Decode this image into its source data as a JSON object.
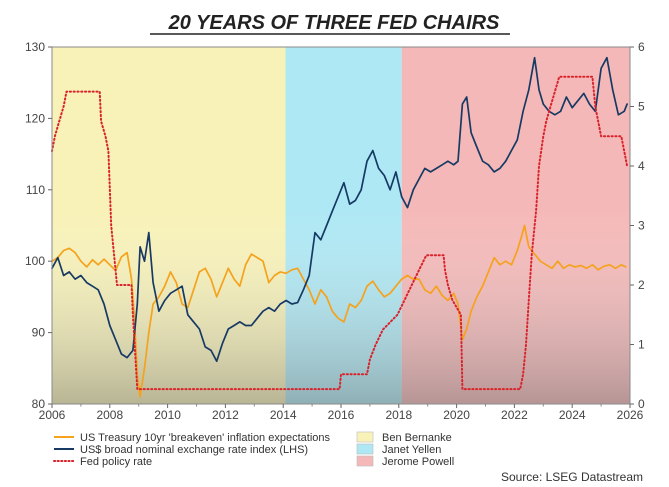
{
  "chart_data": {
    "type": "line",
    "title": "20 YEARS OF THREE FED CHAIRS",
    "source": "Source: LSEG Datastream",
    "x_ticks": [
      "2006",
      "2008",
      "2010",
      "2012",
      "2014",
      "2016",
      "2018",
      "2020",
      "2022",
      "2024",
      "2026"
    ],
    "xlim": [
      2006,
      2026
    ],
    "y_left": {
      "lim": [
        80,
        130
      ],
      "ticks": [
        "80",
        "90",
        "100",
        "110",
        "120",
        "130"
      ]
    },
    "y_right": {
      "lim": [
        0,
        6
      ],
      "ticks": [
        "0",
        "1",
        "2",
        "3",
        "4",
        "5",
        "6"
      ]
    },
    "grid": false,
    "legend_position": "bottom",
    "regimes": [
      {
        "name": "Ben Bernanke",
        "start": 2006.0,
        "end": 2014.08,
        "color": "#f8f2b8"
      },
      {
        "name": "Janet Yellen",
        "start": 2014.08,
        "end": 2018.1,
        "color": "#aee8f4"
      },
      {
        "name": "Jerome Powell",
        "start": 2018.1,
        "end": 2026.0,
        "color": "#f5b8b8"
      }
    ],
    "series": [
      {
        "name": "US Treasury 10yr 'breakeven' inflation expectations",
        "axis": "left",
        "color": "#f5a21c",
        "style": "solid",
        "points": [
          [
            2006.0,
            100
          ],
          [
            2006.2,
            100.5
          ],
          [
            2006.4,
            101.5
          ],
          [
            2006.6,
            101.8
          ],
          [
            2006.8,
            101.2
          ],
          [
            2007.0,
            100
          ],
          [
            2007.2,
            99.2
          ],
          [
            2007.4,
            100.2
          ],
          [
            2007.6,
            99.5
          ],
          [
            2007.8,
            100.3
          ],
          [
            2008.0,
            99.5
          ],
          [
            2008.2,
            98.7
          ],
          [
            2008.4,
            100.6
          ],
          [
            2008.6,
            101.2
          ],
          [
            2008.75,
            97.5
          ],
          [
            2008.85,
            92
          ],
          [
            2008.95,
            84
          ],
          [
            2009.05,
            81
          ],
          [
            2009.2,
            85
          ],
          [
            2009.35,
            90
          ],
          [
            2009.5,
            94
          ],
          [
            2009.7,
            95
          ],
          [
            2009.9,
            96.5
          ],
          [
            2010.1,
            98.5
          ],
          [
            2010.3,
            97
          ],
          [
            2010.5,
            94
          ],
          [
            2010.7,
            93.5
          ],
          [
            2010.9,
            96
          ],
          [
            2011.1,
            98.5
          ],
          [
            2011.3,
            99
          ],
          [
            2011.5,
            97.5
          ],
          [
            2011.7,
            95
          ],
          [
            2011.9,
            97
          ],
          [
            2012.1,
            99
          ],
          [
            2012.3,
            97.5
          ],
          [
            2012.5,
            96.5
          ],
          [
            2012.7,
            99.5
          ],
          [
            2012.9,
            101
          ],
          [
            2013.1,
            100.5
          ],
          [
            2013.3,
            100
          ],
          [
            2013.5,
            97
          ],
          [
            2013.7,
            98
          ],
          [
            2013.9,
            98.5
          ],
          [
            2014.1,
            98.3
          ],
          [
            2014.3,
            98.8
          ],
          [
            2014.5,
            99
          ],
          [
            2014.7,
            97.5
          ],
          [
            2014.9,
            96
          ],
          [
            2015.1,
            94
          ],
          [
            2015.3,
            96
          ],
          [
            2015.5,
            95
          ],
          [
            2015.7,
            93
          ],
          [
            2015.9,
            92
          ],
          [
            2016.1,
            91.5
          ],
          [
            2016.3,
            94
          ],
          [
            2016.5,
            93.5
          ],
          [
            2016.7,
            94.5
          ],
          [
            2016.9,
            96.5
          ],
          [
            2017.1,
            97.2
          ],
          [
            2017.3,
            96
          ],
          [
            2017.5,
            95
          ],
          [
            2017.7,
            95.5
          ],
          [
            2017.9,
            96.5
          ],
          [
            2018.1,
            97.5
          ],
          [
            2018.3,
            98
          ],
          [
            2018.5,
            97.5
          ],
          [
            2018.7,
            97.5
          ],
          [
            2018.9,
            96
          ],
          [
            2019.1,
            95.5
          ],
          [
            2019.3,
            96.5
          ],
          [
            2019.5,
            95.2
          ],
          [
            2019.7,
            94.5
          ],
          [
            2019.9,
            95.5
          ],
          [
            2020.05,
            94
          ],
          [
            2020.2,
            89
          ],
          [
            2020.35,
            90.5
          ],
          [
            2020.5,
            93
          ],
          [
            2020.7,
            95
          ],
          [
            2020.9,
            96.5
          ],
          [
            2021.1,
            98.5
          ],
          [
            2021.3,
            100.5
          ],
          [
            2021.5,
            99.5
          ],
          [
            2021.7,
            100
          ],
          [
            2021.9,
            99.5
          ],
          [
            2022.1,
            101.5
          ],
          [
            2022.25,
            103.5
          ],
          [
            2022.35,
            105
          ],
          [
            2022.5,
            102
          ],
          [
            2022.7,
            101
          ],
          [
            2022.9,
            100
          ],
          [
            2023.1,
            99.5
          ],
          [
            2023.3,
            99
          ],
          [
            2023.5,
            100
          ],
          [
            2023.7,
            99
          ],
          [
            2023.9,
            99.5
          ],
          [
            2024.1,
            99.2
          ],
          [
            2024.3,
            99.4
          ],
          [
            2024.5,
            99
          ],
          [
            2024.7,
            99.5
          ],
          [
            2024.9,
            98.8
          ],
          [
            2025.1,
            99.3
          ],
          [
            2025.3,
            99.5
          ],
          [
            2025.5,
            99
          ],
          [
            2025.7,
            99.5
          ],
          [
            2025.85,
            99.2
          ]
        ]
      },
      {
        "name": "US$ broad nominal exchange rate index (LHS)",
        "axis": "left",
        "color": "#173a64",
        "style": "solid",
        "points": [
          [
            2006.0,
            99
          ],
          [
            2006.2,
            100.5
          ],
          [
            2006.4,
            98
          ],
          [
            2006.6,
            98.5
          ],
          [
            2006.8,
            97.5
          ],
          [
            2007.0,
            98
          ],
          [
            2007.2,
            97
          ],
          [
            2007.4,
            96.5
          ],
          [
            2007.6,
            96
          ],
          [
            2007.8,
            94
          ],
          [
            2008.0,
            91
          ],
          [
            2008.2,
            89
          ],
          [
            2008.4,
            87
          ],
          [
            2008.6,
            86.5
          ],
          [
            2008.8,
            87.5
          ],
          [
            2008.95,
            94
          ],
          [
            2009.05,
            102
          ],
          [
            2009.2,
            100
          ],
          [
            2009.35,
            104
          ],
          [
            2009.5,
            97
          ],
          [
            2009.7,
            93
          ],
          [
            2009.9,
            94.5
          ],
          [
            2010.1,
            95.5
          ],
          [
            2010.3,
            96
          ],
          [
            2010.5,
            96.5
          ],
          [
            2010.7,
            92.5
          ],
          [
            2010.9,
            91.5
          ],
          [
            2011.1,
            90.5
          ],
          [
            2011.3,
            88
          ],
          [
            2011.5,
            87.5
          ],
          [
            2011.7,
            86
          ],
          [
            2011.9,
            88.5
          ],
          [
            2012.1,
            90.5
          ],
          [
            2012.3,
            91
          ],
          [
            2012.5,
            91.5
          ],
          [
            2012.7,
            91
          ],
          [
            2012.9,
            91
          ],
          [
            2013.1,
            92
          ],
          [
            2013.3,
            93
          ],
          [
            2013.5,
            93.5
          ],
          [
            2013.7,
            93
          ],
          [
            2013.9,
            94
          ],
          [
            2014.1,
            94.5
          ],
          [
            2014.3,
            94
          ],
          [
            2014.5,
            94.2
          ],
          [
            2014.7,
            96
          ],
          [
            2014.9,
            98
          ],
          [
            2015.1,
            104
          ],
          [
            2015.3,
            103
          ],
          [
            2015.5,
            105
          ],
          [
            2015.7,
            107
          ],
          [
            2015.9,
            109
          ],
          [
            2016.1,
            111
          ],
          [
            2016.3,
            108
          ],
          [
            2016.5,
            108.5
          ],
          [
            2016.7,
            110
          ],
          [
            2016.9,
            114
          ],
          [
            2017.1,
            115.5
          ],
          [
            2017.3,
            113
          ],
          [
            2017.5,
            112
          ],
          [
            2017.7,
            110
          ],
          [
            2017.9,
            112.5
          ],
          [
            2018.1,
            109
          ],
          [
            2018.3,
            107.5
          ],
          [
            2018.5,
            110
          ],
          [
            2018.7,
            111.5
          ],
          [
            2018.9,
            113
          ],
          [
            2019.1,
            112.5
          ],
          [
            2019.3,
            113
          ],
          [
            2019.5,
            113.5
          ],
          [
            2019.7,
            114
          ],
          [
            2019.9,
            113.5
          ],
          [
            2020.05,
            114
          ],
          [
            2020.2,
            122
          ],
          [
            2020.35,
            123
          ],
          [
            2020.5,
            118
          ],
          [
            2020.7,
            116
          ],
          [
            2020.9,
            114
          ],
          [
            2021.1,
            113.5
          ],
          [
            2021.3,
            112.5
          ],
          [
            2021.5,
            113
          ],
          [
            2021.7,
            114
          ],
          [
            2021.9,
            115.5
          ],
          [
            2022.1,
            117
          ],
          [
            2022.3,
            121
          ],
          [
            2022.5,
            124
          ],
          [
            2022.7,
            128.5
          ],
          [
            2022.85,
            124
          ],
          [
            2023.0,
            122
          ],
          [
            2023.2,
            121
          ],
          [
            2023.4,
            120.5
          ],
          [
            2023.6,
            121
          ],
          [
            2023.8,
            123
          ],
          [
            2024.0,
            121.5
          ],
          [
            2024.2,
            122.5
          ],
          [
            2024.4,
            123.5
          ],
          [
            2024.6,
            122
          ],
          [
            2024.8,
            121
          ],
          [
            2025.0,
            127
          ],
          [
            2025.2,
            128.5
          ],
          [
            2025.4,
            124
          ],
          [
            2025.6,
            120.5
          ],
          [
            2025.8,
            121
          ],
          [
            2025.9,
            122
          ]
        ]
      },
      {
        "name": "Fed policy rate",
        "axis": "right",
        "color": "#d9222a",
        "style": "dotted",
        "points": [
          [
            2006.0,
            4.25
          ],
          [
            2006.1,
            4.5
          ],
          [
            2006.25,
            4.75
          ],
          [
            2006.4,
            5.0
          ],
          [
            2006.5,
            5.25
          ],
          [
            2007.65,
            5.25
          ],
          [
            2007.7,
            4.75
          ],
          [
            2007.85,
            4.5
          ],
          [
            2007.95,
            4.25
          ],
          [
            2008.05,
            3.0
          ],
          [
            2008.25,
            2.0
          ],
          [
            2008.75,
            2.0
          ],
          [
            2008.8,
            1.5
          ],
          [
            2008.95,
            0.25
          ],
          [
            2015.95,
            0.25
          ],
          [
            2016.0,
            0.5
          ],
          [
            2016.9,
            0.5
          ],
          [
            2017.0,
            0.75
          ],
          [
            2017.2,
            1.0
          ],
          [
            2017.45,
            1.25
          ],
          [
            2017.95,
            1.5
          ],
          [
            2018.2,
            1.75
          ],
          [
            2018.45,
            2.0
          ],
          [
            2018.7,
            2.25
          ],
          [
            2018.95,
            2.5
          ],
          [
            2019.55,
            2.5
          ],
          [
            2019.6,
            2.25
          ],
          [
            2019.7,
            2.0
          ],
          [
            2019.85,
            1.75
          ],
          [
            2020.15,
            1.5
          ],
          [
            2020.2,
            0.25
          ],
          [
            2022.2,
            0.25
          ],
          [
            2022.3,
            0.5
          ],
          [
            2022.4,
            1.0
          ],
          [
            2022.5,
            1.75
          ],
          [
            2022.6,
            2.5
          ],
          [
            2022.75,
            3.25
          ],
          [
            2022.85,
            4.0
          ],
          [
            2023.0,
            4.5
          ],
          [
            2023.1,
            4.75
          ],
          [
            2023.25,
            5.0
          ],
          [
            2023.4,
            5.25
          ],
          [
            2023.55,
            5.5
          ],
          [
            2024.7,
            5.5
          ],
          [
            2024.8,
            5.0
          ],
          [
            2024.9,
            4.75
          ],
          [
            2025.0,
            4.5
          ],
          [
            2025.7,
            4.5
          ],
          [
            2025.8,
            4.25
          ],
          [
            2025.9,
            4.0
          ]
        ]
      }
    ]
  }
}
